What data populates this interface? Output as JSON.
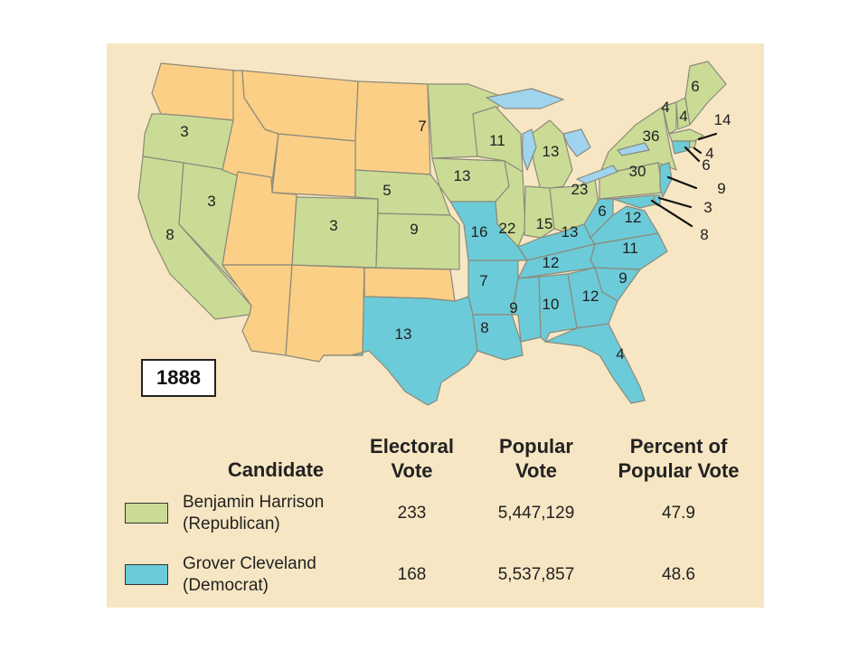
{
  "year": "1888",
  "colors": {
    "republican": "#cadb96",
    "democrat": "#6ccbd8",
    "territory": "#fbcf86",
    "background": "#f7e6c3",
    "water": "#9fd3ee",
    "border": "#8a8a7a"
  },
  "electoral_labels": [
    {
      "state": "Oregon",
      "votes": "3",
      "party": "republican"
    },
    {
      "state": "Nevada",
      "votes": "3",
      "party": "republican"
    },
    {
      "state": "California",
      "votes": "8",
      "party": "republican"
    },
    {
      "state": "Nebraska",
      "votes": "5",
      "party": "republican"
    },
    {
      "state": "Colorado",
      "votes": "3",
      "party": "republican"
    },
    {
      "state": "Kansas",
      "votes": "9",
      "party": "republican"
    },
    {
      "state": "Minnesota",
      "votes": "7",
      "party": "republican"
    },
    {
      "state": "Iowa",
      "votes": "13",
      "party": "republican"
    },
    {
      "state": "Wisconsin",
      "votes": "11",
      "party": "republican"
    },
    {
      "state": "Michigan",
      "votes": "13",
      "party": "republican"
    },
    {
      "state": "Illinois",
      "votes": "22",
      "party": "republican"
    },
    {
      "state": "Indiana",
      "votes": "15",
      "party": "republican"
    },
    {
      "state": "Ohio",
      "votes": "23",
      "party": "republican"
    },
    {
      "state": "Pennsylvania",
      "votes": "30",
      "party": "republican"
    },
    {
      "state": "New York",
      "votes": "36",
      "party": "republican"
    },
    {
      "state": "Maine",
      "votes": "6",
      "party": "republican"
    },
    {
      "state": "Vermont",
      "votes": "4",
      "party": "republican"
    },
    {
      "state": "New Hampshire",
      "votes": "4",
      "party": "republican"
    },
    {
      "state": "Massachusetts",
      "votes": "14",
      "party": "republican"
    },
    {
      "state": "Rhode Island",
      "votes": "4",
      "party": "republican"
    },
    {
      "state": "Connecticut",
      "votes": "6",
      "party": "democrat"
    },
    {
      "state": "New Jersey",
      "votes": "9",
      "party": "democrat"
    },
    {
      "state": "Delaware",
      "votes": "3",
      "party": "democrat"
    },
    {
      "state": "Maryland",
      "votes": "8",
      "party": "democrat"
    },
    {
      "state": "West Virginia",
      "votes": "6",
      "party": "democrat"
    },
    {
      "state": "Virginia",
      "votes": "12",
      "party": "democrat"
    },
    {
      "state": "Kentucky",
      "votes": "13",
      "party": "democrat"
    },
    {
      "state": "Missouri",
      "votes": "16",
      "party": "democrat"
    },
    {
      "state": "North Carolina",
      "votes": "11",
      "party": "democrat"
    },
    {
      "state": "Tennessee",
      "votes": "12",
      "party": "democrat"
    },
    {
      "state": "South Carolina",
      "votes": "9",
      "party": "democrat"
    },
    {
      "state": "Arkansas",
      "votes": "7",
      "party": "democrat"
    },
    {
      "state": "Georgia",
      "votes": "12",
      "party": "democrat"
    },
    {
      "state": "Alabama",
      "votes": "10",
      "party": "democrat"
    },
    {
      "state": "Mississippi",
      "votes": "9",
      "party": "democrat"
    },
    {
      "state": "Louisiana",
      "votes": "8",
      "party": "democrat"
    },
    {
      "state": "Texas",
      "votes": "13",
      "party": "democrat"
    },
    {
      "state": "Florida",
      "votes": "4",
      "party": "democrat"
    }
  ],
  "table": {
    "headers": {
      "candidate": "Candidate",
      "electoral_1": "Electoral",
      "electoral_2": "Vote",
      "popular_1": "Popular",
      "popular_2": "Vote",
      "percent_1": "Percent of",
      "percent_2": "Popular Vote"
    },
    "rows": [
      {
        "name": "Benjamin Harrison",
        "party": "(Republican)",
        "electoral": "233",
        "popular": "5,447,129",
        "percent": "47.9",
        "color": "#cadb96"
      },
      {
        "name": "Grover Cleveland",
        "party": "(Democrat)",
        "electoral": "168",
        "popular": "5,537,857",
        "percent": "48.6",
        "color": "#6ccbd8"
      }
    ]
  }
}
